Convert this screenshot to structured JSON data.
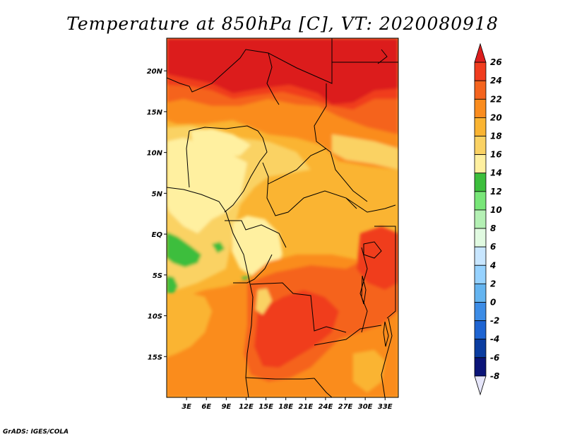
{
  "title": "Temperature at 850hPa [C], VT: 2020080918",
  "credit": "GrADS: IGES/COLA",
  "map": {
    "lon_range": [
      0,
      35
    ],
    "lat_range": [
      -20,
      24
    ],
    "lon_ticks": [
      {
        "value": 3,
        "label": "3E"
      },
      {
        "value": 6,
        "label": "6E"
      },
      {
        "value": 9,
        "label": "9E"
      },
      {
        "value": 12,
        "label": "12E"
      },
      {
        "value": 15,
        "label": "15E"
      },
      {
        "value": 18,
        "label": "18E"
      },
      {
        "value": 21,
        "label": "21E"
      },
      {
        "value": 24,
        "label": "24E"
      },
      {
        "value": 27,
        "label": "27E"
      },
      {
        "value": 30,
        "label": "30E"
      },
      {
        "value": 33,
        "label": "33E"
      }
    ],
    "lat_ticks": [
      {
        "value": 20,
        "label": "20N"
      },
      {
        "value": 15,
        "label": "15N"
      },
      {
        "value": 10,
        "label": "10N"
      },
      {
        "value": 5,
        "label": "5N"
      },
      {
        "value": 0,
        "label": "EQ"
      },
      {
        "value": -5,
        "label": "5S"
      },
      {
        "value": -10,
        "label": "10S"
      },
      {
        "value": -15,
        "label": "15S"
      }
    ]
  },
  "colorbar": {
    "levels": [
      "26",
      "24",
      "22",
      "20",
      "18",
      "16",
      "14",
      "12",
      "10",
      "8",
      "6",
      "4",
      "2",
      "0",
      "-2",
      "-4",
      "-6",
      "-8"
    ],
    "colors_top_to_bottom": [
      "#dc1e1e",
      "#f03c1e",
      "#f5641e",
      "#fa8c1e",
      "#fab432",
      "#fad264",
      "#fff0a0",
      "#3cbe3c",
      "#78e678",
      "#b4f0b4",
      "#e1fae1",
      "#c8e6ff",
      "#96d2ff",
      "#64b4f0",
      "#3c8ce6",
      "#1e64d2",
      "#0a3ca0",
      "#0a1478",
      "#e6e6fa"
    ]
  }
}
